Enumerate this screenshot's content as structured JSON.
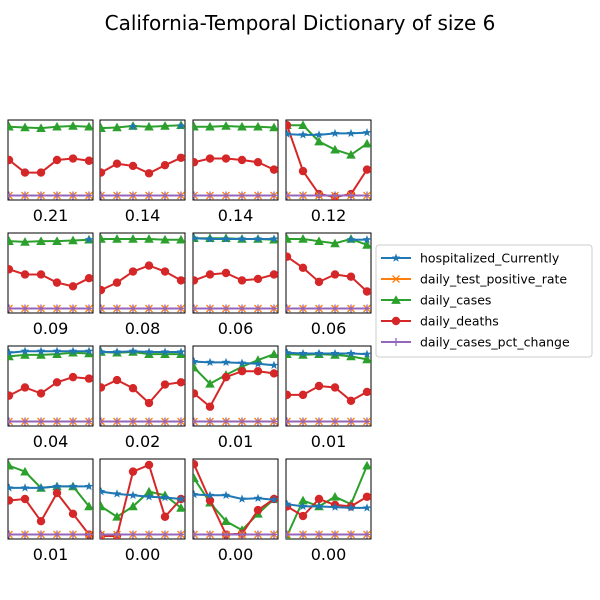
{
  "chart_data": {
    "type": "line",
    "title": "California-Temporal Dictionary of size 6",
    "layout": "small-multiples 4x4",
    "xlabel": "",
    "ylabel": "",
    "ylim": [
      0,
      1
    ],
    "grid": false,
    "axis_ticks": false,
    "legend_position": "right",
    "series_names": [
      "hospitalized_Currently",
      "daily_test_positive_rate",
      "daily_cases",
      "daily_deaths",
      "daily_cases_pct_change"
    ],
    "colors": [
      "#1f77b4",
      "#ff7f0e",
      "#2ca02c",
      "#d62728",
      "#9467bd"
    ],
    "markers": [
      "star",
      "x",
      "triangle",
      "circle",
      "plus"
    ],
    "panels": [
      {
        "caption": "0.21",
        "series": {
          "daily_cases": [
            0.95,
            0.94,
            0.93,
            0.95,
            0.96,
            0.95
          ],
          "daily_deaths": [
            0.5,
            0.33,
            0.33,
            0.5,
            0.52,
            0.49
          ],
          "hospitalized_Currently": [
            null,
            null,
            null,
            null,
            null,
            null
          ],
          "daily_test_positive_rate": [
            0.02,
            0.02,
            0.02,
            0.02,
            0.02,
            0.02
          ],
          "daily_cases_pct_change": [
            0.02,
            0.02,
            0.02,
            0.02,
            0.02,
            0.02
          ]
        }
      },
      {
        "caption": "0.14",
        "series": {
          "daily_cases": [
            0.93,
            0.94,
            0.96,
            0.95,
            0.96,
            0.97
          ],
          "daily_deaths": [
            0.33,
            0.45,
            0.42,
            0.32,
            0.43,
            0.53
          ],
          "hospitalized_Currently": [
            null,
            null,
            0.95,
            null,
            null,
            0.96
          ],
          "daily_test_positive_rate": [
            0.02,
            0.02,
            0.02,
            0.02,
            0.02,
            0.02
          ],
          "daily_cases_pct_change": [
            0.02,
            0.02,
            0.02,
            0.02,
            0.02,
            0.02
          ]
        }
      },
      {
        "caption": "0.14",
        "series": {
          "daily_cases": [
            0.95,
            0.95,
            0.96,
            0.95,
            0.95,
            0.94
          ],
          "daily_deaths": [
            0.47,
            0.52,
            0.52,
            0.5,
            0.47,
            0.37
          ],
          "hospitalized_Currently": [
            null,
            null,
            null,
            null,
            null,
            null
          ],
          "daily_test_positive_rate": [
            0.02,
            0.02,
            0.02,
            0.02,
            0.02,
            0.02
          ],
          "daily_cases_pct_change": [
            0.02,
            0.02,
            0.02,
            0.02,
            0.02,
            0.02
          ]
        }
      },
      {
        "caption": "0.12",
        "series": {
          "daily_cases": [
            0.97,
            0.97,
            0.75,
            0.64,
            0.57,
            0.72
          ],
          "daily_deaths": [
            0.97,
            0.35,
            0.04,
            0.0,
            0.04,
            0.37
          ],
          "hospitalized_Currently": [
            0.85,
            0.84,
            0.84,
            0.86,
            0.86,
            0.87
          ],
          "daily_test_positive_rate": [
            0.02,
            0.02,
            0.02,
            0.02,
            0.02,
            0.02
          ],
          "daily_cases_pct_change": [
            0.02,
            0.02,
            0.02,
            0.02,
            0.02,
            0.02
          ]
        }
      },
      {
        "caption": "0.09",
        "series": {
          "daily_cases": [
            0.93,
            0.92,
            0.93,
            0.93,
            0.94,
            0.95
          ],
          "daily_deaths": [
            0.55,
            0.48,
            0.48,
            0.37,
            0.32,
            0.43
          ],
          "hospitalized_Currently": [
            null,
            null,
            null,
            null,
            null,
            0.95
          ],
          "daily_test_positive_rate": [
            0.02,
            0.02,
            0.02,
            0.02,
            0.02,
            0.02
          ],
          "daily_cases_pct_change": [
            0.02,
            0.02,
            0.02,
            0.02,
            0.02,
            0.02
          ]
        }
      },
      {
        "caption": "0.08",
        "series": {
          "daily_cases": [
            0.96,
            0.96,
            0.96,
            0.96,
            0.95,
            0.95
          ],
          "daily_deaths": [
            0.27,
            0.37,
            0.52,
            0.6,
            0.52,
            0.4
          ],
          "hospitalized_Currently": [
            null,
            null,
            null,
            null,
            null,
            null
          ],
          "daily_test_positive_rate": [
            0.02,
            0.02,
            0.02,
            0.02,
            0.02,
            0.02
          ],
          "daily_cases_pct_change": [
            0.02,
            0.02,
            0.02,
            0.02,
            0.02,
            0.02
          ]
        }
      },
      {
        "caption": "0.06",
        "series": {
          "daily_cases": [
            0.97,
            0.97,
            0.97,
            0.96,
            0.96,
            0.95
          ],
          "daily_deaths": [
            0.4,
            0.48,
            0.5,
            0.4,
            0.42,
            0.48
          ],
          "hospitalized_Currently": [
            0.97,
            0.96,
            0.96,
            0.96,
            0.96,
            0.96
          ],
          "daily_test_positive_rate": [
            0.02,
            0.02,
            0.02,
            0.02,
            0.02,
            0.02
          ],
          "daily_cases_pct_change": [
            0.02,
            0.02,
            0.02,
            0.02,
            0.02,
            0.02
          ]
        }
      },
      {
        "caption": "0.06",
        "series": {
          "daily_cases": [
            0.96,
            0.96,
            0.93,
            0.9,
            0.96,
            0.88
          ],
          "daily_deaths": [
            0.72,
            0.57,
            0.38,
            0.48,
            0.45,
            0.25
          ],
          "hospitalized_Currently": [
            null,
            null,
            null,
            null,
            0.95,
            0.95
          ],
          "daily_test_positive_rate": [
            0.02,
            0.02,
            0.02,
            0.02,
            0.02,
            0.02
          ],
          "daily_cases_pct_change": [
            0.02,
            0.02,
            0.02,
            0.02,
            0.02,
            0.02
          ]
        }
      },
      {
        "caption": "0.04",
        "series": {
          "daily_cases": [
            0.9,
            0.92,
            0.92,
            0.93,
            0.95,
            0.94
          ],
          "daily_deaths": [
            0.37,
            0.48,
            0.4,
            0.55,
            0.62,
            0.6
          ],
          "hospitalized_Currently": [
            0.95,
            0.97,
            0.97,
            0.97,
            0.97,
            0.97
          ],
          "daily_test_positive_rate": [
            0.02,
            0.02,
            0.02,
            0.02,
            0.02,
            0.02
          ],
          "daily_cases_pct_change": [
            0.02,
            0.02,
            0.02,
            0.02,
            0.02,
            0.02
          ]
        }
      },
      {
        "caption": "0.02",
        "series": {
          "daily_cases": [
            0.96,
            0.95,
            0.96,
            0.93,
            0.93,
            0.93
          ],
          "daily_deaths": [
            0.48,
            0.58,
            0.47,
            0.27,
            0.52,
            0.55
          ],
          "hospitalized_Currently": [
            0.96,
            0.96,
            0.97,
            0.96,
            0.96,
            0.96
          ],
          "daily_test_positive_rate": [
            0.02,
            0.02,
            0.02,
            0.02,
            0.02,
            0.02
          ],
          "daily_cases_pct_change": [
            0.02,
            0.02,
            0.02,
            0.02,
            0.02,
            0.02
          ]
        }
      },
      {
        "caption": "0.01",
        "series": {
          "daily_cases": [
            0.75,
            0.53,
            0.65,
            0.76,
            0.85,
            0.93
          ],
          "daily_deaths": [
            0.4,
            0.22,
            0.62,
            0.7,
            0.7,
            0.67
          ],
          "hospitalized_Currently": [
            0.83,
            0.82,
            0.82,
            0.81,
            0.8,
            0.78
          ],
          "daily_test_positive_rate": [
            0.02,
            0.02,
            0.02,
            0.02,
            0.02,
            0.02
          ],
          "daily_cases_pct_change": [
            0.02,
            0.02,
            0.02,
            0.02,
            0.02,
            0.02
          ]
        }
      },
      {
        "caption": "0.01",
        "series": {
          "daily_cases": [
            0.93,
            0.92,
            0.93,
            0.92,
            0.9,
            0.86
          ],
          "daily_deaths": [
            0.38,
            0.38,
            0.5,
            0.48,
            0.3,
            0.42
          ],
          "hospitalized_Currently": [
            0.95,
            0.94,
            0.94,
            0.94,
            0.94,
            0.93
          ],
          "daily_test_positive_rate": [
            0.02,
            0.02,
            0.02,
            0.02,
            0.02,
            0.02
          ],
          "daily_cases_pct_change": [
            0.02,
            0.02,
            0.02,
            0.02,
            0.02,
            0.02
          ]
        }
      },
      {
        "caption": "0.01",
        "series": {
          "daily_cases": [
            0.95,
            0.87,
            0.65,
            0.67,
            0.67,
            0.4
          ],
          "daily_deaths": [
            0.48,
            0.5,
            0.2,
            0.58,
            0.3,
            0.02
          ],
          "hospitalized_Currently": [
            0.65,
            0.65,
            0.65,
            0.67,
            0.67,
            0.67
          ],
          "daily_test_positive_rate": [
            0.02,
            0.02,
            0.02,
            0.02,
            0.02,
            0.02
          ],
          "daily_cases_pct_change": [
            0.02,
            0.02,
            0.02,
            0.02,
            0.02,
            0.02
          ]
        }
      },
      {
        "caption": "0.00",
        "series": {
          "daily_cases": [
            0.4,
            0.26,
            0.4,
            0.6,
            0.55,
            0.38
          ],
          "daily_deaths": [
            0.0,
            0.0,
            0.87,
            0.96,
            0.26,
            0.5
          ],
          "hospitalized_Currently": [
            0.6,
            0.57,
            0.55,
            0.53,
            0.52,
            0.5
          ],
          "daily_test_positive_rate": [
            0.02,
            0.02,
            0.02,
            0.02,
            0.02,
            0.02
          ],
          "daily_cases_pct_change": [
            0.02,
            0.02,
            0.02,
            0.02,
            0.02,
            0.02
          ]
        }
      },
      {
        "caption": "0.00",
        "series": {
          "daily_cases": [
            0.78,
            0.45,
            0.2,
            0.08,
            0.3,
            0.5
          ],
          "daily_deaths": [
            0.97,
            0.48,
            0.02,
            0.03,
            0.35,
            0.5
          ],
          "hospitalized_Currently": [
            0.56,
            0.55,
            0.55,
            0.5,
            0.51,
            0.49
          ],
          "daily_test_positive_rate": [
            0.02,
            0.02,
            0.02,
            0.02,
            0.02,
            0.02
          ],
          "daily_cases_pct_change": [
            0.02,
            0.02,
            0.02,
            0.02,
            0.02,
            0.02
          ]
        }
      },
      {
        "caption": "0.00",
        "series": {
          "daily_cases": [
            0.0,
            0.48,
            0.4,
            0.53,
            0.43,
            0.95
          ],
          "daily_deaths": [
            0.4,
            0.27,
            0.5,
            0.42,
            0.4,
            0.53
          ],
          "hospitalized_Currently": [
            0.43,
            0.4,
            0.4,
            0.39,
            0.38,
            0.38
          ],
          "daily_test_positive_rate": [
            0.02,
            0.02,
            0.02,
            0.02,
            0.02,
            0.02
          ],
          "daily_cases_pct_change": [
            0.02,
            0.02,
            0.02,
            0.02,
            0.02,
            0.02
          ]
        }
      }
    ]
  }
}
